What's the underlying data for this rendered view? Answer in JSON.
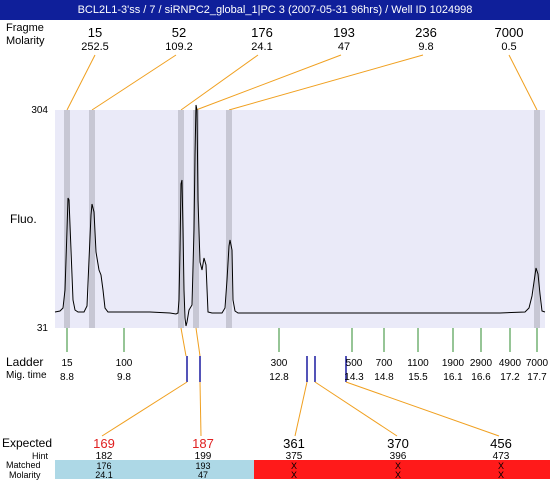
{
  "header": {
    "title": "BCL2L1-3'ss / 7 / siRNPC2_global_1|PC 3 (2007-05-31 96hrs) / Well ID 1024998"
  },
  "peaks_section": {
    "row_labels": {
      "fragment": "Fragme",
      "molarity": "Molarity"
    },
    "sizes": [
      "15",
      "52",
      "176",
      "193",
      "236",
      "7000"
    ],
    "molarities": [
      "252.5",
      "109.2",
      "24.1",
      "47",
      "9.8",
      "0.5"
    ]
  },
  "plot": {
    "y_max": "304",
    "y_min": "31",
    "ylabel": "Fluo.",
    "colors": {
      "background": "#eaeaf8",
      "marker_band": "#c7c7d4",
      "trace": "#000000"
    }
  },
  "ladder": {
    "title": "Ladder",
    "mig_label": "Mig. time",
    "entries": [
      {
        "size": "15",
        "time": "8.8"
      },
      {
        "size": "100",
        "time": "9.8"
      },
      {
        "size": "300",
        "time": "12.8"
      },
      {
        "size": "500",
        "time": "14.3"
      },
      {
        "size": "700",
        "time": "14.8"
      },
      {
        "size": "1100",
        "time": "15.5"
      },
      {
        "size": "1900",
        "time": "16.1"
      },
      {
        "size": "2900",
        "time": "16.6"
      },
      {
        "size": "4900",
        "time": "17.2"
      },
      {
        "size": "7000",
        "time": "17.7"
      }
    ]
  },
  "expected_section": {
    "title": "Expected",
    "row_labels": {
      "hint": "Hint",
      "matched": "Matched",
      "molarity": "Molarity"
    },
    "columns": [
      {
        "expected": "169",
        "hint": "182",
        "matched": "176",
        "molarity": "24.1",
        "status": "matched"
      },
      {
        "expected": "187",
        "hint": "199",
        "matched": "193",
        "molarity": "47",
        "status": "matched"
      },
      {
        "expected": "361",
        "hint": "375",
        "matched": "X",
        "molarity": "X",
        "status": "missing"
      },
      {
        "expected": "370",
        "hint": "396",
        "matched": "X",
        "molarity": "X",
        "status": "missing"
      },
      {
        "expected": "456",
        "hint": "473",
        "matched": "X",
        "molarity": "X",
        "status": "missing"
      }
    ],
    "colors": {
      "matched_bg": "#add8e6",
      "missing_bg": "#ff1a1a",
      "highlight_text": "#e02020",
      "connector": "#f0a020"
    }
  }
}
